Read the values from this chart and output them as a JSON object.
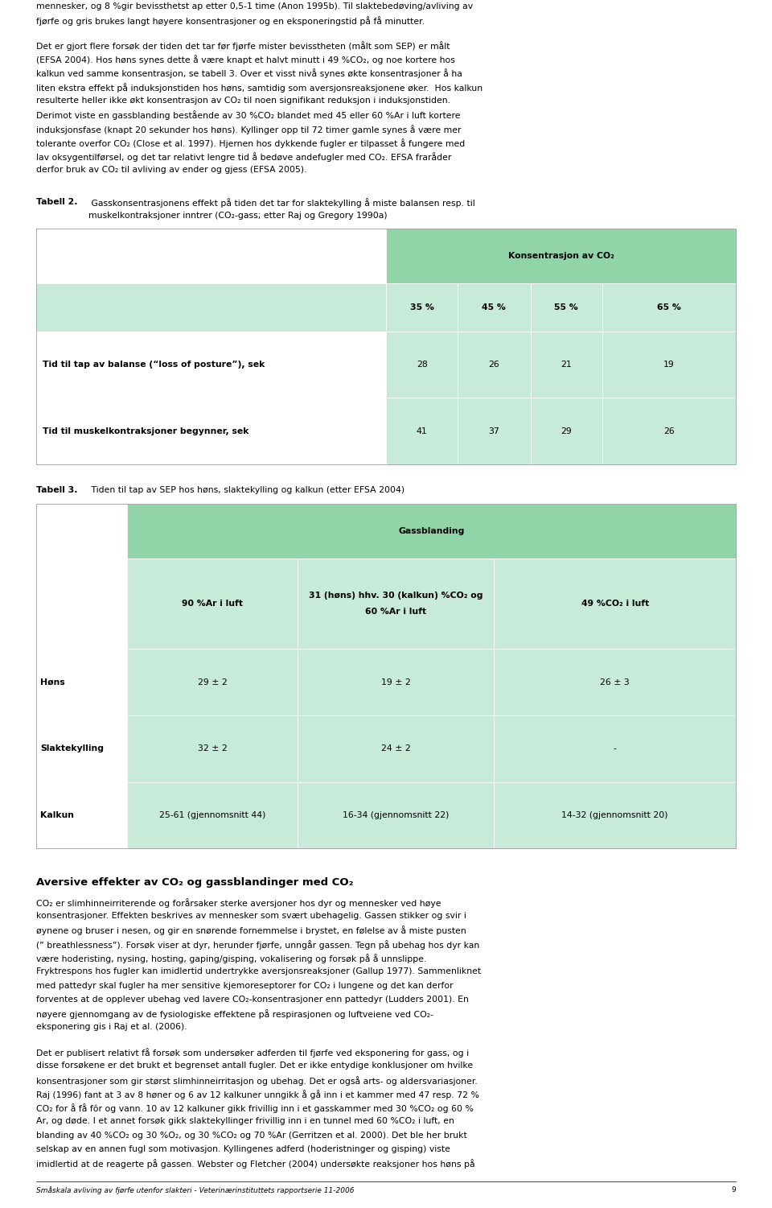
{
  "background_color": "#ffffff",
  "page_width": 9.6,
  "page_height": 15.01,
  "table_header_bg": "#90d4a8",
  "table_row_bg_light": "#c8ead8",
  "table2_subheaders": [
    "35 %",
    "45 %",
    "55 %",
    "65 %"
  ],
  "table2_rows": [
    {
      "label": "Tid til tap av balanse (“loss of posture”), sek",
      "values": [
        "28",
        "26",
        "21",
        "19"
      ]
    },
    {
      "label": "Tid til muskelkontraksjoner begynner, sek",
      "values": [
        "41",
        "37",
        "29",
        "26"
      ]
    }
  ],
  "table3_col_headers": [
    "90 %Ar i luft",
    "31 (høns) hhv. 30 (kalkun) %CO₂ og\n60 %Ar i luft",
    "49 %CO₂ i luft"
  ],
  "table3_rows": [
    {
      "label": "Høns",
      "values": [
        "29 ± 2",
        "19 ± 2",
        "26 ± 3"
      ]
    },
    {
      "label": "Slaktekylling",
      "values": [
        "32 ± 2",
        "24 ± 2",
        "-"
      ]
    },
    {
      "label": "Kalkun",
      "values": [
        "25-61 (gjennomsnitt 44)",
        "16-34 (gjennomsnitt 22)",
        "14-32 (gjennomsnitt 20)"
      ]
    }
  ],
  "footer_text": "Småskala avliving av fjørfe utenfor slakteri - Veterinærinstituttets rapportserie 11-2006",
  "footer_page": "9"
}
